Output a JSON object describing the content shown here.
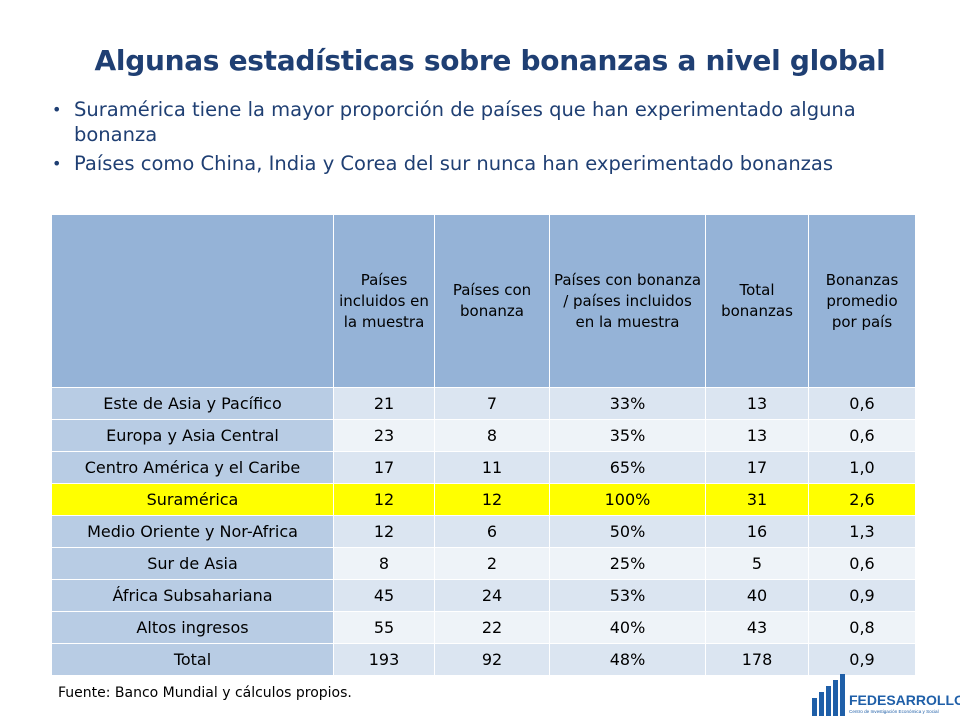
{
  "slide": {
    "title": "Algunas estadísticas sobre bonanzas a nivel global",
    "bullets": [
      "Suramérica tiene la mayor proporción de países que han experimentado alguna bonanza",
      "Países como China, India y Corea del sur nunca han experimentado bonanzas"
    ],
    "source": "Fuente: Banco Mundial y cálculos propios."
  },
  "table": {
    "headers": [
      "",
      "Países incluidos en la muestra",
      "Países con bonanza",
      "Países con bonanza / países incluidos en la muestra",
      "Total bonanzas",
      "Bonanzas promedio por país"
    ],
    "rows": [
      {
        "region": "Este de Asia y Pacífico",
        "incluidos": "21",
        "con_bonanza": "7",
        "proporcion": "33%",
        "total": "13",
        "promedio": "0,6"
      },
      {
        "region": "Europa y Asia Central",
        "incluidos": "23",
        "con_bonanza": "8",
        "proporcion": "35%",
        "total": "13",
        "promedio": "0,6"
      },
      {
        "region": "Centro América y el Caribe",
        "incluidos": "17",
        "con_bonanza": "11",
        "proporcion": "65%",
        "total": "17",
        "promedio": "1,0"
      },
      {
        "region": "Suramérica",
        "incluidos": "12",
        "con_bonanza": "12",
        "proporcion": "100%",
        "total": "31",
        "promedio": "2,6"
      },
      {
        "region": "Medio Oriente y Nor-Africa",
        "incluidos": "12",
        "con_bonanza": "6",
        "proporcion": "50%",
        "total": "16",
        "promedio": "1,3"
      },
      {
        "region": "Sur de Asia",
        "incluidos": "8",
        "con_bonanza": "2",
        "proporcion": "25%",
        "total": "5",
        "promedio": "0,6"
      },
      {
        "region": "África Subsahariana",
        "incluidos": "45",
        "con_bonanza": "24",
        "proporcion": "53%",
        "total": "40",
        "promedio": "0,9"
      },
      {
        "region": "Altos ingresos",
        "incluidos": "55",
        "con_bonanza": "22",
        "proporcion": "40%",
        "total": "43",
        "promedio": "0,8"
      },
      {
        "region": "Total",
        "incluidos": "193",
        "con_bonanza": "92",
        "proporcion": "48%",
        "total": "178",
        "promedio": "0,9"
      }
    ],
    "highlight_color": "#ffff00",
    "header_color": "#95b3d7"
  },
  "logo": {
    "name": "FEDESARROLLO",
    "tagline": "Centro de Investigación Económica y Social",
    "color": "#1f5fa8"
  }
}
